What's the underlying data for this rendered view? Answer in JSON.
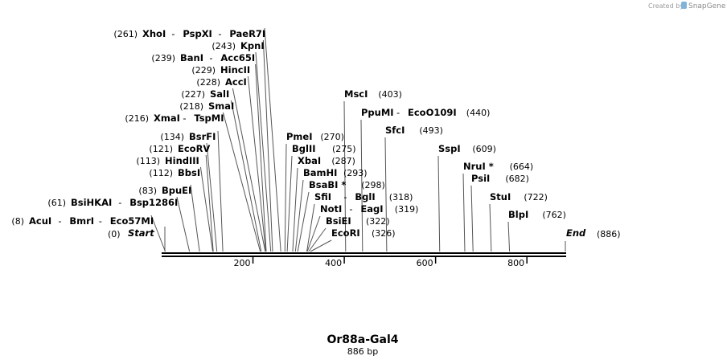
{
  "header": {
    "credit_prefix": "Created by",
    "brand": "SnapGene"
  },
  "map": {
    "title": "Or88a-Gal4",
    "length_label": "886 bp",
    "length": 886,
    "start_label": "Start",
    "start_pos": "(0)",
    "end_label": "End",
    "end_pos": "(886)",
    "ticks": [
      200,
      400,
      600,
      800
    ],
    "sites": [
      {
        "pos": 8,
        "pos_label": "(8)",
        "names": [
          "AcuI",
          "BmrI",
          "Eco57MI"
        ]
      },
      {
        "pos": 61,
        "pos_label": "(61)",
        "names": [
          "BsiHKAI",
          "Bsp1286I"
        ]
      },
      {
        "pos": 83,
        "pos_label": "(83)",
        "names": [
          "BpuEI"
        ]
      },
      {
        "pos": 112,
        "pos_label": "(112)",
        "names": [
          "BbsI"
        ]
      },
      {
        "pos": 113,
        "pos_label": "(113)",
        "names": [
          "HindIII"
        ]
      },
      {
        "pos": 121,
        "pos_label": "(121)",
        "names": [
          "EcoRV"
        ]
      },
      {
        "pos": 134,
        "pos_label": "(134)",
        "names": [
          "BsrFI"
        ]
      },
      {
        "pos": 216,
        "pos_label": "(216)",
        "names": [
          "XmaI",
          "TspMI"
        ]
      },
      {
        "pos": 218,
        "pos_label": "(218)",
        "names": [
          "SmaI"
        ]
      },
      {
        "pos": 227,
        "pos_label": "(227)",
        "names": [
          "SalI"
        ]
      },
      {
        "pos": 228,
        "pos_label": "(228)",
        "names": [
          "AccI"
        ]
      },
      {
        "pos": 229,
        "pos_label": "(229)",
        "names": [
          "HincII"
        ]
      },
      {
        "pos": 239,
        "pos_label": "(239)",
        "names": [
          "BanI",
          "Acc65I"
        ]
      },
      {
        "pos": 243,
        "pos_label": "(243)",
        "names": [
          "KpnI"
        ]
      },
      {
        "pos": 261,
        "pos_label": "(261)",
        "names": [
          "XhoI",
          "PspXI",
          "PaeR7I"
        ]
      },
      {
        "pos": 270,
        "pos_label": "(270)",
        "names": [
          "PmeI"
        ]
      },
      {
        "pos": 275,
        "pos_label": "(275)",
        "names": [
          "BglII"
        ]
      },
      {
        "pos": 287,
        "pos_label": "(287)",
        "names": [
          "XbaI"
        ]
      },
      {
        "pos": 293,
        "pos_label": "(293)",
        "names": [
          "BamHI"
        ]
      },
      {
        "pos": 298,
        "pos_label": "(298)",
        "names": [
          "BsaBI *"
        ]
      },
      {
        "pos": 318,
        "pos_label": "(318)",
        "names": [
          "SfiI",
          "BglI"
        ]
      },
      {
        "pos": 319,
        "pos_label": "(319)",
        "names": [
          "NotI",
          "EagI"
        ]
      },
      {
        "pos": 322,
        "pos_label": "(322)",
        "names": [
          "BsiEI"
        ]
      },
      {
        "pos": 326,
        "pos_label": "(326)",
        "names": [
          "EcoRI"
        ]
      },
      {
        "pos": 403,
        "pos_label": "(403)",
        "names": [
          "MscI"
        ]
      },
      {
        "pos": 440,
        "pos_label": "(440)",
        "names": [
          "PpuMI",
          "EcoO109I"
        ]
      },
      {
        "pos": 493,
        "pos_label": "(493)",
        "names": [
          "SfcI"
        ]
      },
      {
        "pos": 609,
        "pos_label": "(609)",
        "names": [
          "SspI"
        ]
      },
      {
        "pos": 664,
        "pos_label": "(664)",
        "names": [
          "NruI *"
        ]
      },
      {
        "pos": 682,
        "pos_label": "(682)",
        "names": [
          "PsiI"
        ]
      },
      {
        "pos": 722,
        "pos_label": "(722)",
        "names": [
          "StuI"
        ]
      },
      {
        "pos": 762,
        "pos_label": "(762)",
        "names": [
          "BlpI"
        ]
      }
    ]
  }
}
